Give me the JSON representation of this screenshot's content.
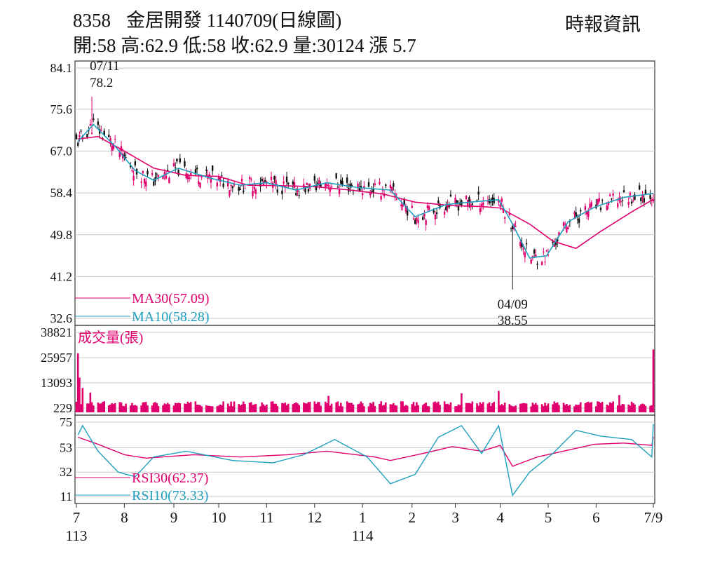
{
  "header": {
    "code": "8358",
    "title": "金居開發 1140709(日線圖)",
    "source": "時報資訊",
    "ohlc_line": "開:58 高:62.9 低:58 收:62.9 量:30124 漲 5.7"
  },
  "chart_data": [
    {
      "type": "candlestick",
      "panel": "price",
      "yticks": [
        "84.1",
        "75.6",
        "67.0",
        "58.4",
        "49.8",
        "41.2",
        "32.6"
      ],
      "ytick_values": [
        84.1,
        75.6,
        67.0,
        58.4,
        49.8,
        41.2,
        32.6
      ],
      "ylim": [
        32.6,
        84.1
      ],
      "grid": true,
      "annotations": [
        {
          "label_lines": [
            "07/11",
            "78.2"
          ],
          "date": "2024-07-11",
          "value": 78.2,
          "kind": "high"
        },
        {
          "label_lines": [
            "04/09",
            "38.55"
          ],
          "date": "2025-04-09",
          "value": 38.55,
          "kind": "low"
        }
      ],
      "legend": [
        {
          "name": "MA30(57.09)",
          "color": "#e0006e"
        },
        {
          "name": "MA10(58.28)",
          "color": "#1f9fbf"
        }
      ],
      "legend_placement": "bottom-left",
      "series": [
        {
          "name": "MA30",
          "color": "#e0006e",
          "x": [
            "2024-07-02",
            "2024-07-15",
            "2024-08-01",
            "2024-08-20",
            "2024-09-10",
            "2024-10-01",
            "2024-10-20",
            "2024-11-10",
            "2024-12-01",
            "2024-12-25",
            "2025-01-15",
            "2025-02-05",
            "2025-03-01",
            "2025-03-20",
            "2025-04-01",
            "2025-04-20",
            "2025-05-05",
            "2025-05-20",
            "2025-06-05",
            "2025-06-25",
            "2025-07-09"
          ],
          "values": [
            69.5,
            70.0,
            67.0,
            63.5,
            62.0,
            61.8,
            60.0,
            59.9,
            59.7,
            59.0,
            58.2,
            56.5,
            55.8,
            55.6,
            55.3,
            52.0,
            48.5,
            47.0,
            50.5,
            54.5,
            57.1
          ]
        },
        {
          "name": "MA10",
          "color": "#1f9fbf",
          "x": [
            "2024-07-02",
            "2024-07-12",
            "2024-07-26",
            "2024-08-08",
            "2024-08-20",
            "2024-09-05",
            "2024-09-25",
            "2024-10-15",
            "2024-11-01",
            "2024-11-20",
            "2024-12-10",
            "2024-12-30",
            "2025-01-20",
            "2025-02-05",
            "2025-02-25",
            "2025-03-12",
            "2025-03-31",
            "2025-04-09",
            "2025-04-20",
            "2025-05-01",
            "2025-05-15",
            "2025-06-01",
            "2025-06-20",
            "2025-07-09"
          ],
          "values": [
            69.0,
            72.5,
            68.0,
            63.0,
            61.0,
            63.5,
            61.5,
            60.0,
            60.5,
            59.0,
            60.5,
            59.5,
            59.0,
            53.5,
            56.0,
            56.5,
            57.0,
            52.0,
            45.0,
            45.5,
            52.5,
            55.5,
            57.5,
            58.3
          ]
        }
      ]
    },
    {
      "type": "bar",
      "panel": "volume",
      "title": "成交量(張)",
      "yticks": [
        "38821",
        "25957",
        "13093",
        "229"
      ],
      "ytick_values": [
        38821,
        25957,
        13093,
        229
      ],
      "ylim": [
        229,
        38821
      ],
      "grid": true,
      "highlights": [
        {
          "x": "2024-07-02",
          "value": 28200
        },
        {
          "x": "2024-07-03",
          "value": 15800
        },
        {
          "x": "2024-07-05",
          "value": 10500
        },
        {
          "x": "2024-07-10",
          "value": 8200
        },
        {
          "x": "2024-12-11",
          "value": 6500
        },
        {
          "x": "2025-03-07",
          "value": 7800
        },
        {
          "x": "2025-03-31",
          "value": 9000
        },
        {
          "x": "2025-06-17",
          "value": 6900
        },
        {
          "x": "2025-07-09",
          "value": 30124
        }
      ]
    },
    {
      "type": "line",
      "panel": "rsi",
      "yticks": [
        "75",
        "53",
        "32",
        "11"
      ],
      "ytick_values": [
        75,
        53,
        32,
        11
      ],
      "ylim": [
        11,
        75
      ],
      "grid": true,
      "legend": [
        {
          "name": "RSI30(62.37)",
          "color": "#e0006e"
        },
        {
          "name": "RSI10(73.33)",
          "color": "#1f9fbf"
        }
      ],
      "legend_placement": "bottom-left",
      "series": [
        {
          "name": "RSI30",
          "color": "#e0006e",
          "x": [
            "2024-07-02",
            "2024-07-15",
            "2024-08-01",
            "2024-08-15",
            "2024-09-15",
            "2024-10-15",
            "2024-11-15",
            "2024-12-10",
            "2025-01-10",
            "2025-01-20",
            "2025-02-10",
            "2025-03-01",
            "2025-03-20",
            "2025-04-01",
            "2025-04-09",
            "2025-04-25",
            "2025-05-15",
            "2025-06-01",
            "2025-06-20",
            "2025-07-08",
            "2025-07-09"
          ],
          "values": [
            62,
            56,
            47,
            44,
            47,
            45,
            47,
            50,
            45,
            42,
            48,
            54,
            50,
            55,
            37,
            45,
            51,
            56,
            57,
            55,
            62.4
          ]
        },
        {
          "name": "RSI10",
          "color": "#1f9fbf",
          "x": [
            "2024-07-02",
            "2024-07-05",
            "2024-07-15",
            "2024-07-28",
            "2024-08-08",
            "2024-08-20",
            "2024-09-10",
            "2024-10-10",
            "2024-11-05",
            "2024-11-25",
            "2024-12-15",
            "2025-01-05",
            "2025-01-20",
            "2025-02-05",
            "2025-02-20",
            "2025-03-07",
            "2025-03-20",
            "2025-03-31",
            "2025-04-09",
            "2025-04-20",
            "2025-05-05",
            "2025-05-20",
            "2025-06-05",
            "2025-06-25",
            "2025-07-08",
            "2025-07-09"
          ],
          "values": [
            64,
            72,
            50,
            32,
            28,
            45,
            50,
            42,
            40,
            47,
            60,
            45,
            22,
            30,
            62,
            72,
            48,
            72,
            12,
            32,
            48,
            68,
            63,
            60,
            45,
            73.3
          ]
        }
      ]
    }
  ],
  "x_axis": {
    "ticks": [
      "7",
      "8",
      "9",
      "10",
      "11",
      "12",
      "1",
      "2",
      "3",
      "4",
      "5",
      "6",
      "7/9"
    ],
    "tick_dates": [
      "2024-07-01",
      "2024-08-01",
      "2024-09-02",
      "2024-10-01",
      "2024-11-01",
      "2024-12-02",
      "2025-01-02",
      "2025-02-03",
      "2025-03-03",
      "2025-04-01",
      "2025-05-02",
      "2025-06-02",
      "2025-07-09"
    ],
    "year_labels": [
      {
        "label": "113",
        "date": "2024-07-01"
      },
      {
        "label": "114",
        "date": "2025-01-02"
      }
    ]
  }
}
